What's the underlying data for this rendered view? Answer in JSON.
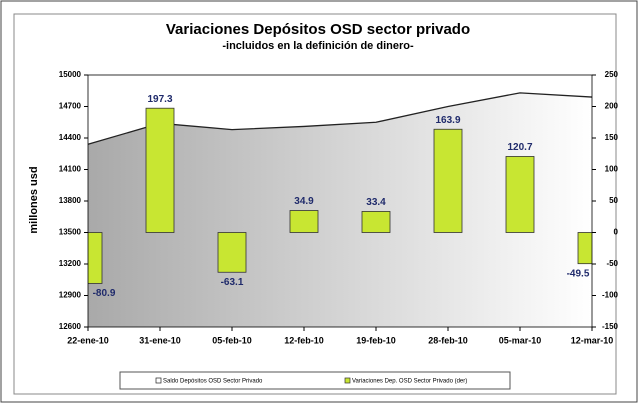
{
  "chart_data": {
    "type": "bar_area",
    "title": "Variaciones Depósitos OSD sector privado",
    "subtitle": "-incluidos en la definición de dinero-",
    "y_label": "millones usd",
    "categories": [
      "22-ene-10",
      "31-ene-10",
      "05-feb-10",
      "12-feb-10",
      "19-feb-10",
      "28-feb-10",
      "05-mar-10",
      "12-mar-10"
    ],
    "series": [
      {
        "name": "Saldo Depósitos OSD Sector Privado",
        "color": "#222222",
        "values": [
          14340,
          14540,
          14480,
          14510,
          14550,
          14700,
          14830,
          14790
        ]
      },
      {
        "name": "Variaciones Dep. OSD Sector Privado (der)",
        "color": "#c8e632",
        "axis": "y2",
        "values": [
          -80.9,
          197.3,
          -63.1,
          34.9,
          33.4,
          163.9,
          120.7,
          -49.5
        ]
      }
    ],
    "ylim": [
      12600,
      15000
    ],
    "yticks": [
      12600,
      12900,
      13200,
      13500,
      13800,
      14100,
      14400,
      14700,
      15000
    ],
    "y2lim": [
      -150,
      250
    ],
    "y2ticks": [
      -150,
      -100,
      -50,
      0,
      50,
      100,
      150,
      200,
      250
    ]
  }
}
